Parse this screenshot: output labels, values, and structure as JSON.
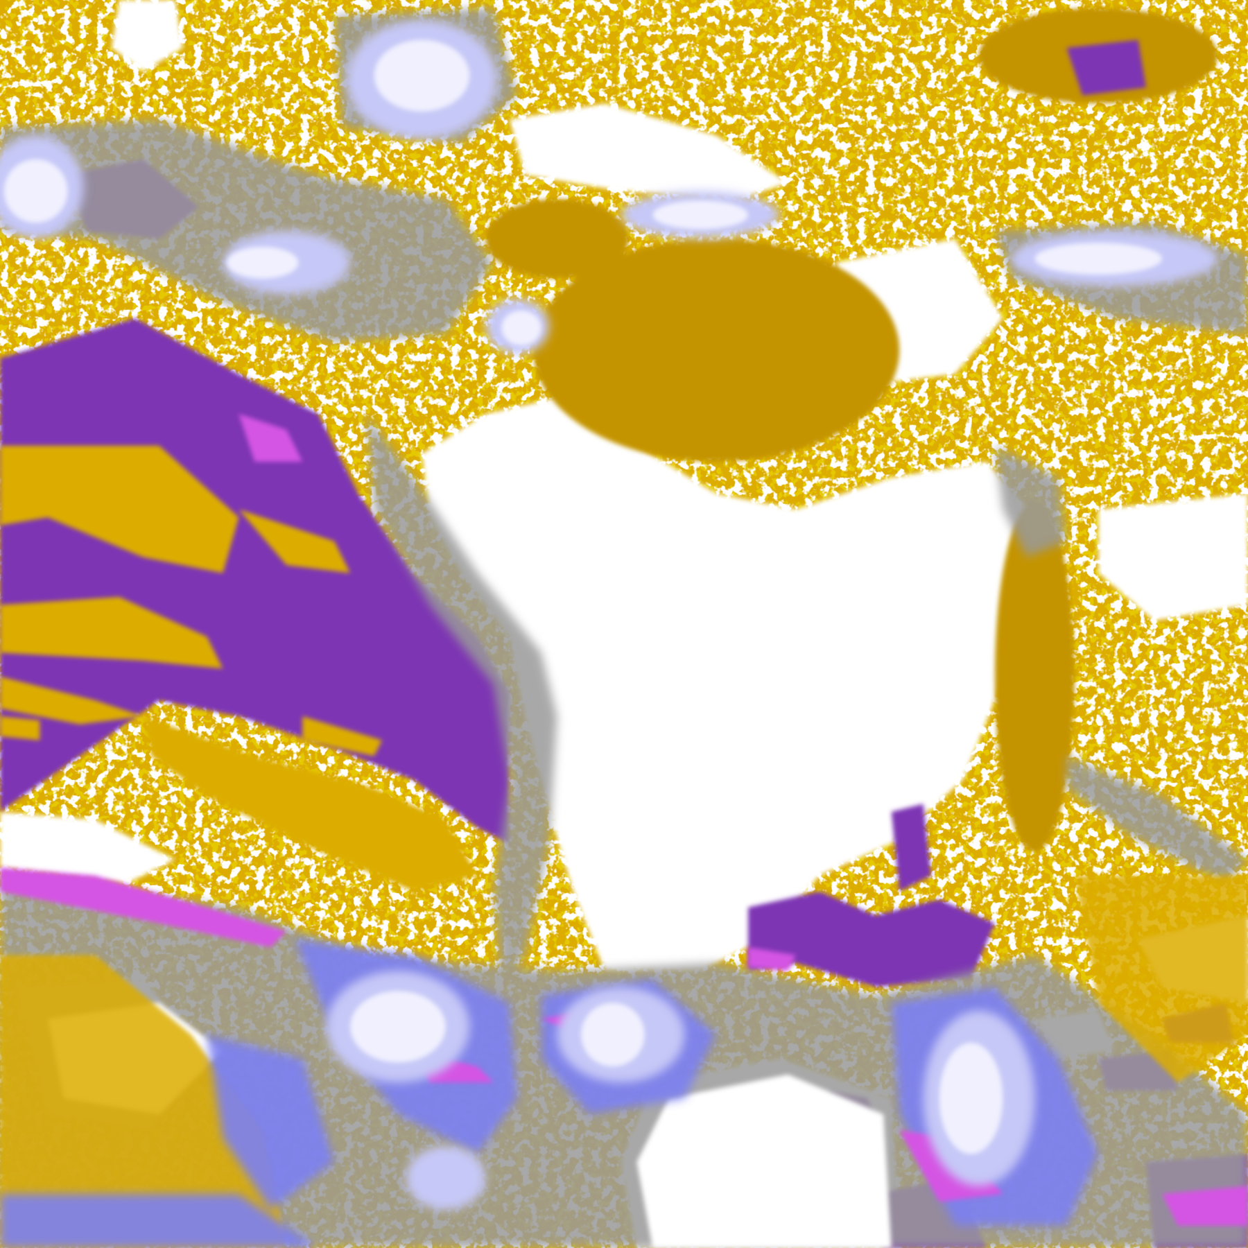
{
  "map": {
    "type": "satellite cloud/surface classification image",
    "colors": {
      "clear": "#ffffff",
      "gold": "#dcad00",
      "dark_gold": "#c49400",
      "purple": "#7d35b3",
      "magenta": "#d455e3",
      "gray": "#9a9a9a",
      "periwinkle": "#7b80f2",
      "lavender": "#c6c8f7",
      "pale": "#f0f0fe"
    }
  }
}
